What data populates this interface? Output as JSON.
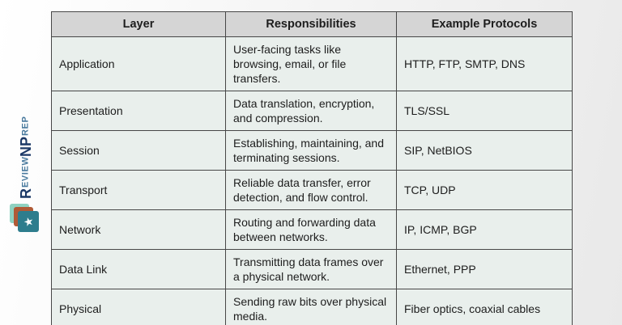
{
  "logo": {
    "part1": "R",
    "part2": "EVIEW",
    "part3": "N",
    "part4": "P",
    "part5": "REP",
    "icon_star_glyph": "★",
    "colors": {
      "navy": "#1b3866",
      "steel_blue": "#48799d",
      "icon_back": "#8fd2c1",
      "icon_mid": "#b05a36",
      "icon_front": "#2e7d8d"
    }
  },
  "table": {
    "headers": [
      "Layer",
      "Responsibilities",
      "Example Protocols"
    ],
    "rows": [
      {
        "layer": "Application",
        "responsibilities": "User-facing tasks like browsing, email, or file transfers.",
        "protocols": "HTTP, FTP, SMTP, DNS"
      },
      {
        "layer": "Presentation",
        "responsibilities": "Data translation, encryption, and compression.",
        "protocols": "TLS/SSL"
      },
      {
        "layer": "Session",
        "responsibilities": "Establishing, maintaining, and terminating sessions.",
        "protocols": "SIP, NetBIOS"
      },
      {
        "layer": "Transport",
        "responsibilities": "Reliable data transfer, error detection, and flow control.",
        "protocols": "TCP, UDP"
      },
      {
        "layer": "Network",
        "responsibilities": "Routing and forwarding data between networks.",
        "protocols": "IP, ICMP, BGP"
      },
      {
        "layer": "Data Link",
        "responsibilities": "Transmitting data frames over a physical network.",
        "protocols": "Ethernet, PPP"
      },
      {
        "layer": "Physical",
        "responsibilities": "Sending raw bits over physical media.",
        "protocols": "Fiber optics, coaxial cables"
      }
    ],
    "colors": {
      "header_bg": "#d5d5d5",
      "cell_bg": "#e9efec",
      "border": "#474747"
    }
  }
}
